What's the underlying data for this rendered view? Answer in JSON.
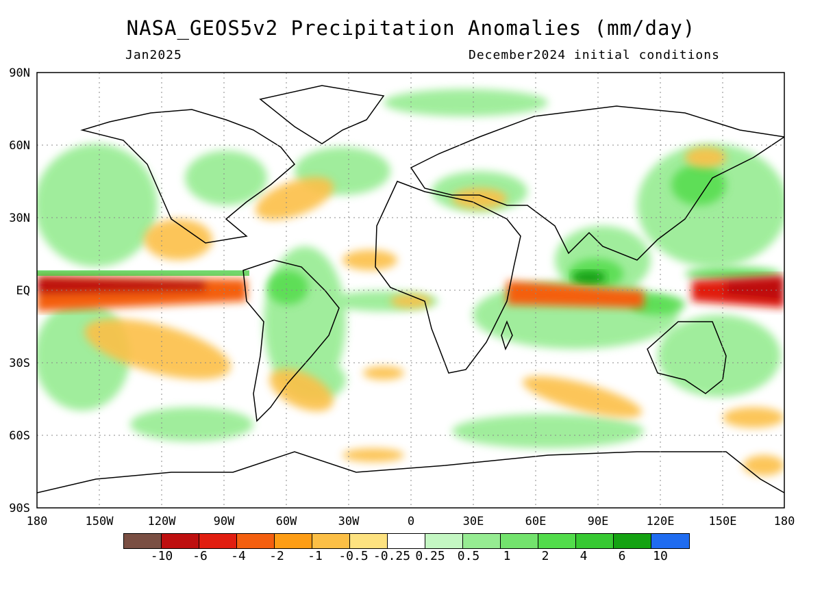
{
  "title": "NASA_GEOS5v2 Precipitation Anomalies (mm/day)",
  "subtitle_left": "Jan2025",
  "subtitle_right": "December2024 initial conditions",
  "axes": {
    "lat_labels": [
      "90N",
      "60N",
      "30N",
      "EQ",
      "30S",
      "60S",
      "90S"
    ],
    "lon_labels": [
      "180",
      "150W",
      "120W",
      "90W",
      "60W",
      "30W",
      "0",
      "30E",
      "60E",
      "90E",
      "120E",
      "150E",
      "180"
    ]
  },
  "colorbar": {
    "colors": [
      "#7a4f43",
      "#be0f0f",
      "#e11e10",
      "#f45f0f",
      "#fd9d15",
      "#fcbf46",
      "#fde280",
      "#ffffff",
      "#c4f7c3",
      "#96ec92",
      "#73e36d",
      "#52dc4b",
      "#37c932",
      "#14a212",
      "#1f6cf0"
    ],
    "labels": [
      "-10",
      "-6",
      "-4",
      "-2",
      "-1",
      "-0.5",
      "-0.25",
      "0.25",
      "0.5",
      "1",
      "2",
      "4",
      "6",
      "10"
    ]
  }
}
